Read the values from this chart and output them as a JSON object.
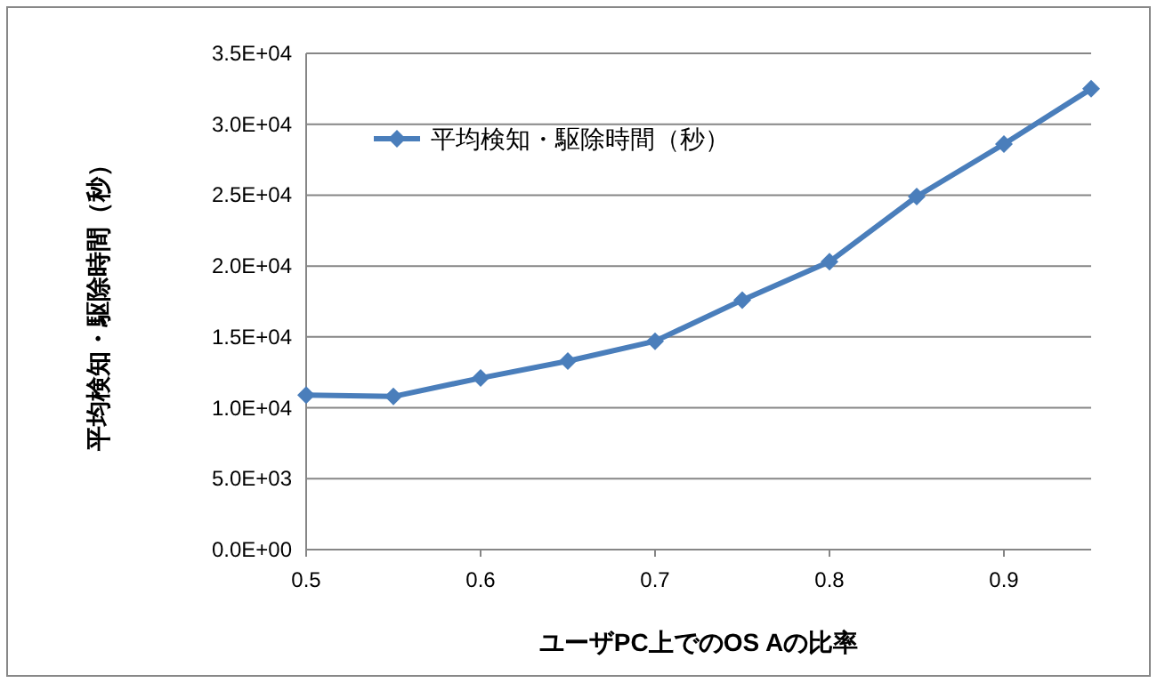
{
  "chart_data": {
    "type": "line",
    "xlabel": "ユーザPC上でのOS Aの比率",
    "ylabel": "平均検知・駆除時間（秒）",
    "x": [
      0.5,
      0.55,
      0.6,
      0.65,
      0.7,
      0.75,
      0.8,
      0.85,
      0.9,
      0.95
    ],
    "series": [
      {
        "name": "平均検知・駆除時間（秒）",
        "color": "#4a7ebb",
        "values": [
          10900,
          10800,
          12100,
          13300,
          14700,
          17600,
          20300,
          24900,
          28600,
          32500
        ]
      }
    ],
    "xlim": [
      0.5,
      0.95
    ],
    "xticks": [
      0.5,
      0.6,
      0.7,
      0.8,
      0.9
    ],
    "ylim": [
      0,
      35000
    ],
    "yticks": [
      {
        "value": 0,
        "label": "0.0E+00"
      },
      {
        "value": 5000,
        "label": "5.0E+03"
      },
      {
        "value": 10000,
        "label": "1.0E+04"
      },
      {
        "value": 15000,
        "label": "1.5E+04"
      },
      {
        "value": 20000,
        "label": "2.0E+04"
      },
      {
        "value": 25000,
        "label": "2.5E+04"
      },
      {
        "value": 30000,
        "label": "3.0E+04"
      },
      {
        "value": 35000,
        "label": "3.5E+04"
      }
    ],
    "grid": "y",
    "legend": "top left",
    "marker": "diamond",
    "line_style": "solid"
  }
}
